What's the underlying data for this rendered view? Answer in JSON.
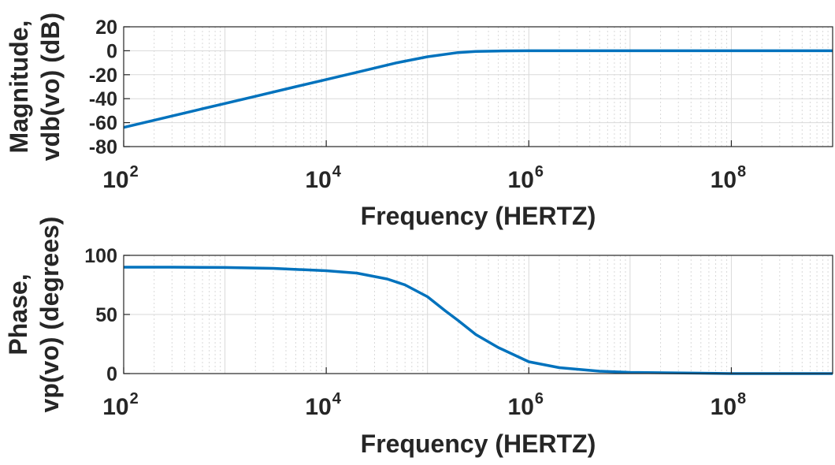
{
  "chart_data": [
    {
      "type": "line",
      "ylabel_lines": [
        "Magnitude,",
        "vdb(vo) (dB)"
      ],
      "xlabel": "Frequency (HERTZ)",
      "xscale": "log",
      "xlim": [
        100,
        1000000000
      ],
      "ylim": [
        -80,
        20
      ],
      "yticks": [
        20,
        0,
        -20,
        -40,
        -60,
        -80
      ],
      "xticks": [
        {
          "base": "10",
          "exp": "2",
          "value": 100
        },
        {
          "base": "10",
          "exp": "4",
          "value": 10000
        },
        {
          "base": "10",
          "exp": "6",
          "value": 1000000
        },
        {
          "base": "10",
          "exp": "8",
          "value": 100000000
        }
      ],
      "grid": true,
      "series": [
        {
          "x": [
            100,
            200,
            500,
            1000,
            2000,
            5000,
            10000,
            20000,
            50000,
            100000,
            200000,
            300000,
            500000,
            1000000,
            10000000,
            100000000,
            1000000000
          ],
          "y": [
            -64,
            -58,
            -50,
            -44,
            -38,
            -30,
            -24,
            -18,
            -10,
            -5,
            -1.5,
            -0.6,
            -0.2,
            0,
            0,
            0,
            0
          ]
        }
      ]
    },
    {
      "type": "line",
      "ylabel_lines": [
        "Phase,",
        "vp(vo) (degrees)"
      ],
      "xlabel": "Frequency (HERTZ)",
      "xscale": "log",
      "xlim": [
        100,
        1000000000
      ],
      "ylim": [
        0,
        100
      ],
      "yticks": [
        100,
        50,
        0
      ],
      "xticks": [
        {
          "base": "10",
          "exp": "2",
          "value": 100
        },
        {
          "base": "10",
          "exp": "4",
          "value": 10000
        },
        {
          "base": "10",
          "exp": "6",
          "value": 1000000
        },
        {
          "base": "10",
          "exp": "8",
          "value": 100000000
        }
      ],
      "grid": true,
      "series": [
        {
          "x": [
            100,
            300,
            1000,
            3000,
            10000,
            20000,
            40000,
            60000,
            100000,
            150000,
            200000,
            300000,
            500000,
            1000000,
            2000000,
            5000000,
            10000000,
            100000000,
            1000000000
          ],
          "y": [
            90,
            90,
            89.7,
            89,
            87,
            85,
            80,
            75,
            65,
            53,
            45,
            33,
            22,
            10,
            5,
            2,
            1,
            0,
            0
          ]
        }
      ]
    }
  ],
  "colors": {
    "line": "#0072BD",
    "axis": "#262626",
    "grid": "#d9d9d9"
  }
}
